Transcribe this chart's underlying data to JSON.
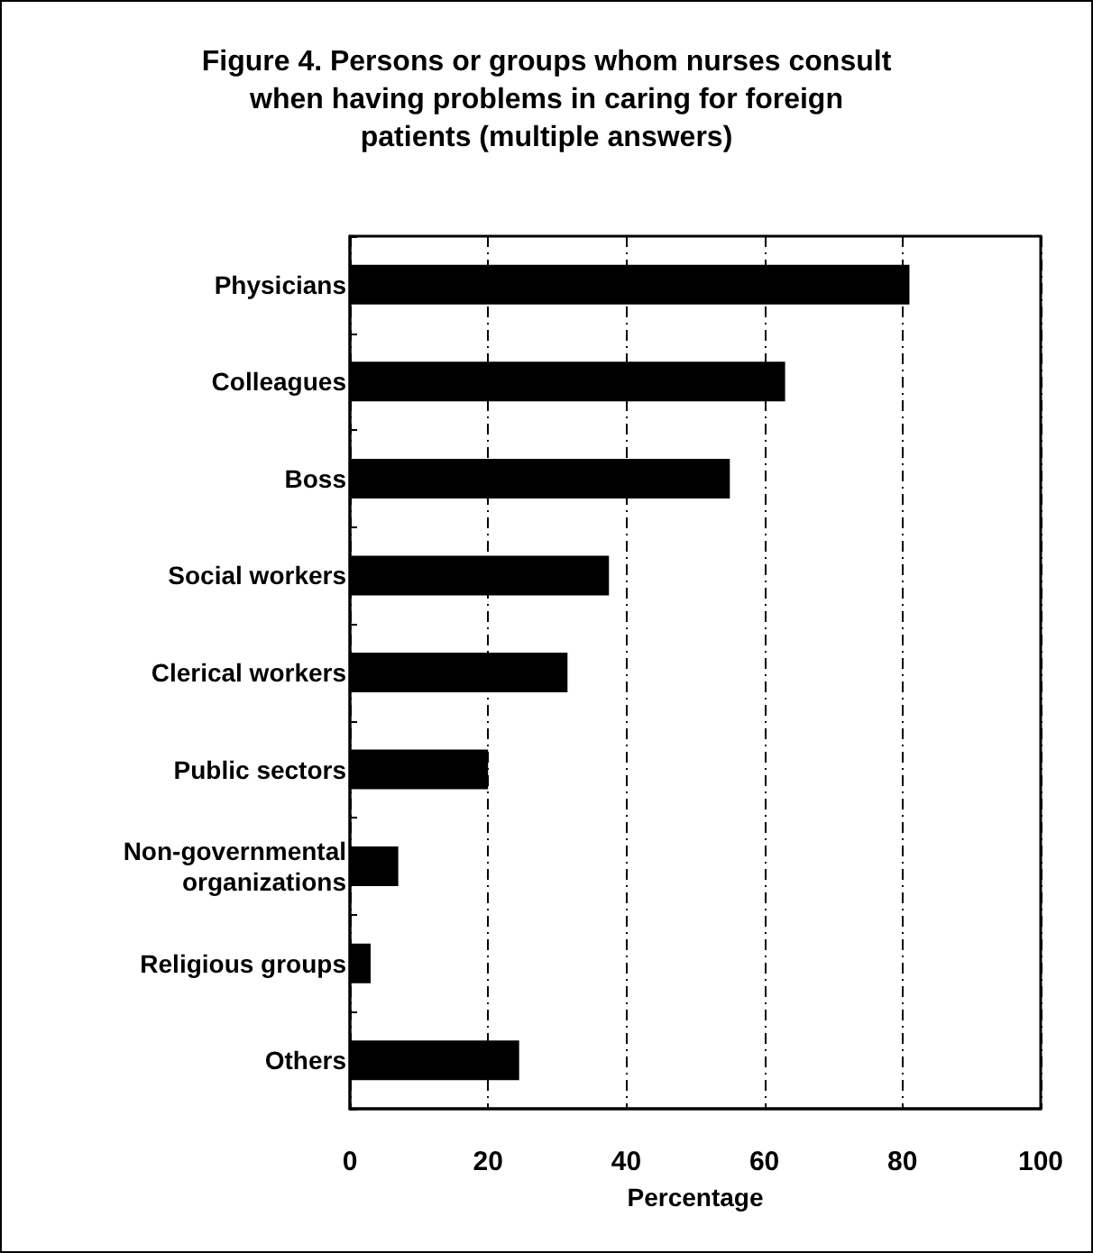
{
  "chart_data": {
    "type": "bar",
    "orientation": "horizontal",
    "title": "Figure 4. Persons or groups whom nurses consult\nwhen having problems in caring for foreign\npatients (multiple answers)",
    "xlabel": "Percentage",
    "categories": [
      "Physicians",
      "Colleagues",
      "Boss",
      "Social workers",
      "Clerical workers",
      "Public sectors",
      "Non-governmental\norganizations",
      "Religious groups",
      "Others"
    ],
    "values": [
      81,
      63,
      55,
      37.5,
      31.5,
      20,
      7,
      3,
      24.5
    ],
    "color": "#000000",
    "xlim": [
      0,
      100
    ],
    "xticks": [
      0,
      20,
      40,
      60,
      80,
      100
    ],
    "grid": "x"
  }
}
